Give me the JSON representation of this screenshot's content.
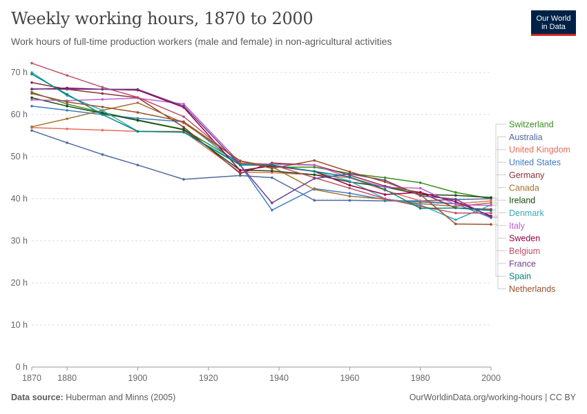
{
  "header": {
    "title": "Weekly working hours, 1870 to 2000",
    "subtitle": "Work hours of full-time production workers (male and female) in non-agricultural activities"
  },
  "logo": {
    "line1": "Our World",
    "line2": "in Data",
    "bg_color": "#002147",
    "accent_color": "#ce261e"
  },
  "footer": {
    "source_label": "Data source:",
    "source_value": "Huberman and Minns (2005)",
    "url_license": "OurWorldinData.org/working-hours | CC BY"
  },
  "chart_data": {
    "type": "line",
    "title": "Weekly working hours, 1870 to 2000",
    "xlim": [
      1870,
      2000
    ],
    "ylim": [
      0,
      70
    ],
    "x_ticks": [
      1870,
      1880,
      1900,
      1920,
      1940,
      1960,
      1980,
      2000
    ],
    "y_ticks": [
      0,
      10,
      20,
      30,
      40,
      50,
      60,
      70
    ],
    "y_tick_labels": [
      "0 h",
      "10 h",
      "20 h",
      "30 h",
      "40 h",
      "50 h",
      "60 h",
      "70 h"
    ],
    "grid": "horizontal-dashed",
    "legend": "right",
    "series": [
      {
        "name": "Switzerland",
        "color": "#3a8e1e",
        "points": [
          [
            1870,
            65.3
          ],
          [
            1880,
            62.5
          ],
          [
            1890,
            60.5
          ],
          [
            1900,
            58.7
          ],
          [
            1913,
            56.5
          ],
          [
            1929,
            48.5
          ],
          [
            1938,
            47.5
          ],
          [
            1950,
            47.5
          ],
          [
            1960,
            46.0
          ],
          [
            1970,
            45.0
          ],
          [
            1980,
            43.8
          ],
          [
            1990,
            41.5
          ],
          [
            2000,
            40.0
          ]
        ]
      },
      {
        "name": "Australia",
        "color": "#4c6a9c",
        "points": [
          [
            1870,
            56.2
          ],
          [
            1880,
            53.3
          ],
          [
            1890,
            50.5
          ],
          [
            1900,
            48.0
          ],
          [
            1913,
            44.6
          ],
          [
            1929,
            45.5
          ],
          [
            1938,
            45.0
          ],
          [
            1950,
            39.6
          ],
          [
            1960,
            39.6
          ],
          [
            1970,
            39.5
          ],
          [
            1980,
            39.5
          ],
          [
            1990,
            39.8
          ],
          [
            2000,
            40.0
          ]
        ]
      },
      {
        "name": "United Kingdom",
        "color": "#e56e5a",
        "points": [
          [
            1870,
            56.9
          ],
          [
            1880,
            56.6
          ],
          [
            1890,
            56.3
          ],
          [
            1900,
            56.0
          ],
          [
            1913,
            56.0
          ],
          [
            1929,
            46.3
          ],
          [
            1938,
            46.2
          ],
          [
            1950,
            45.7
          ],
          [
            1960,
            45.0
          ],
          [
            1970,
            42.0
          ],
          [
            1980,
            39.5
          ],
          [
            1990,
            38.8
          ],
          [
            2000,
            39.5
          ]
        ]
      },
      {
        "name": "United States",
        "color": "#3c7cc6",
        "points": [
          [
            1870,
            62.0
          ],
          [
            1880,
            61.0
          ],
          [
            1890,
            60.0
          ],
          [
            1900,
            59.1
          ],
          [
            1913,
            58.3
          ],
          [
            1929,
            48.0
          ],
          [
            1938,
            37.3
          ],
          [
            1950,
            42.4
          ],
          [
            1960,
            41.3
          ],
          [
            1970,
            39.8
          ],
          [
            1980,
            39.2
          ],
          [
            1990,
            38.8
          ],
          [
            2000,
            35.5
          ]
        ]
      },
      {
        "name": "Germany",
        "color": "#883039",
        "points": [
          [
            1870,
            67.6
          ],
          [
            1880,
            66.0
          ],
          [
            1890,
            65.0
          ],
          [
            1900,
            64.0
          ],
          [
            1913,
            57.0
          ],
          [
            1929,
            46.0
          ],
          [
            1938,
            48.5
          ],
          [
            1950,
            48.0
          ],
          [
            1960,
            45.6
          ],
          [
            1970,
            43.0
          ],
          [
            1980,
            41.5
          ],
          [
            1990,
            37.8
          ],
          [
            2000,
            37.5
          ]
        ]
      },
      {
        "name": "Canada",
        "color": "#a2722f",
        "points": [
          [
            1870,
            57.1
          ],
          [
            1880,
            59.0
          ],
          [
            1890,
            61.0
          ],
          [
            1900,
            62.8
          ],
          [
            1913,
            58.0
          ],
          [
            1929,
            49.0
          ],
          [
            1938,
            47.6
          ],
          [
            1950,
            42.2
          ],
          [
            1960,
            40.6
          ],
          [
            1970,
            39.9
          ],
          [
            1980,
            38.8
          ],
          [
            1990,
            38.2
          ],
          [
            2000,
            39.0
          ]
        ]
      },
      {
        "name": "Ireland",
        "color": "#18470f",
        "points": [
          [
            1870,
            64.0
          ],
          [
            1880,
            62.0
          ],
          [
            1890,
            60.3
          ],
          [
            1900,
            58.6
          ],
          [
            1913,
            56.4
          ],
          [
            1929,
            46.8
          ],
          [
            1938,
            46.6
          ],
          [
            1950,
            45.7
          ],
          [
            1960,
            44.0
          ],
          [
            1970,
            42.8
          ],
          [
            1980,
            41.0
          ],
          [
            1990,
            40.8
          ],
          [
            2000,
            40.3
          ]
        ]
      },
      {
        "name": "Denmark",
        "color": "#38aaba",
        "points": [
          [
            1870,
            70.0
          ],
          [
            1880,
            64.5
          ],
          [
            1890,
            61.0
          ],
          [
            1900,
            56.0
          ],
          [
            1913,
            55.8
          ],
          [
            1929,
            48.2
          ],
          [
            1938,
            48.0
          ],
          [
            1950,
            46.5
          ],
          [
            1960,
            44.2
          ],
          [
            1970,
            40.0
          ],
          [
            1980,
            38.5
          ],
          [
            1990,
            35.0
          ],
          [
            2000,
            38.5
          ]
        ]
      },
      {
        "name": "Italy",
        "color": "#c05bd0",
        "points": [
          [
            1870,
            63.5
          ],
          [
            1880,
            63.3
          ],
          [
            1890,
            63.6
          ],
          [
            1900,
            63.9
          ],
          [
            1913,
            62.5
          ],
          [
            1929,
            48.5
          ],
          [
            1938,
            48.2
          ],
          [
            1950,
            48.0
          ],
          [
            1960,
            45.0
          ],
          [
            1970,
            42.7
          ],
          [
            1980,
            42.5
          ],
          [
            1990,
            38.6
          ],
          [
            2000,
            38.4
          ]
        ]
      },
      {
        "name": "Sweden",
        "color": "#970046",
        "points": [
          [
            1870,
            66.0
          ],
          [
            1880,
            66.3
          ],
          [
            1890,
            66.0
          ],
          [
            1900,
            65.8
          ],
          [
            1913,
            61.7
          ],
          [
            1929,
            46.7
          ],
          [
            1938,
            47.8
          ],
          [
            1950,
            46.5
          ],
          [
            1960,
            43.2
          ],
          [
            1970,
            41.0
          ],
          [
            1980,
            41.5
          ],
          [
            1990,
            39.3
          ],
          [
            2000,
            35.9
          ]
        ]
      },
      {
        "name": "Belgium",
        "color": "#c15065",
        "points": [
          [
            1870,
            72.2
          ],
          [
            1880,
            69.3
          ],
          [
            1890,
            66.5
          ],
          [
            1900,
            64.1
          ],
          [
            1913,
            59.5
          ],
          [
            1929,
            48.5
          ],
          [
            1938,
            48.1
          ],
          [
            1950,
            45.0
          ],
          [
            1960,
            42.5
          ],
          [
            1970,
            40.0
          ],
          [
            1980,
            38.2
          ],
          [
            1990,
            36.6
          ],
          [
            2000,
            36.6
          ]
        ]
      },
      {
        "name": "France",
        "color": "#6d3e91",
        "points": [
          [
            1870,
            66.1
          ],
          [
            1880,
            66.0
          ],
          [
            1890,
            66.0
          ],
          [
            1900,
            66.0
          ],
          [
            1913,
            62.0
          ],
          [
            1929,
            48.0
          ],
          [
            1938,
            39.0
          ],
          [
            1950,
            44.8
          ],
          [
            1960,
            45.9
          ],
          [
            1970,
            44.4
          ],
          [
            1980,
            40.7
          ],
          [
            1990,
            39.9
          ],
          [
            2000,
            35.6
          ]
        ]
      },
      {
        "name": "Spain",
        "color": "#00847e",
        "points": [
          [
            1870,
            69.6
          ],
          [
            1880,
            64.8
          ],
          [
            1890,
            60.0
          ],
          [
            1900,
            56.0
          ],
          [
            1913,
            55.8
          ],
          [
            1929,
            48.0
          ],
          [
            1938,
            48.0
          ],
          [
            1950,
            46.5
          ],
          [
            1960,
            45.2
          ],
          [
            1970,
            42.2
          ],
          [
            1980,
            37.7
          ],
          [
            1990,
            37.8
          ],
          [
            2000,
            37.2
          ]
        ]
      },
      {
        "name": "Netherlands",
        "color": "#9a5129",
        "points": [
          [
            1870,
            65.0
          ],
          [
            1880,
            63.0
          ],
          [
            1890,
            61.8
          ],
          [
            1900,
            60.5
          ],
          [
            1913,
            58.3
          ],
          [
            1929,
            49.0
          ],
          [
            1938,
            47.2
          ],
          [
            1950,
            49.1
          ],
          [
            1960,
            46.4
          ],
          [
            1970,
            44.0
          ],
          [
            1980,
            41.0
          ],
          [
            1990,
            34.0
          ],
          [
            2000,
            33.9
          ]
        ]
      }
    ]
  }
}
